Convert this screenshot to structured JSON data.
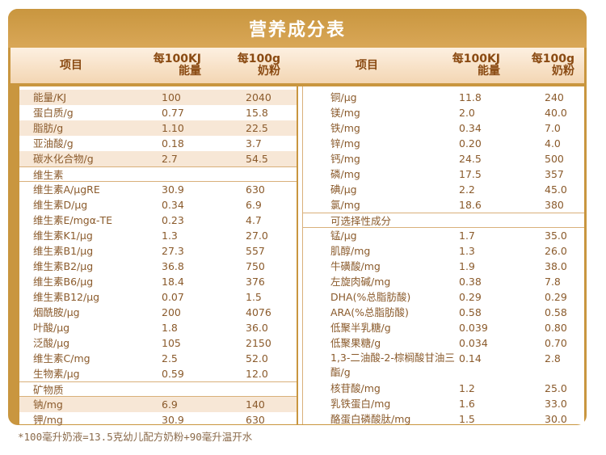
{
  "title": "营养成分表",
  "header": {
    "item": "项目",
    "per_kj_1": "每100KJ",
    "per_kj_2": "能量",
    "per_g_1": "每100g",
    "per_g_2": "奶粉"
  },
  "left_rows": [
    {
      "name": "能量/KJ",
      "v1": "100",
      "v2": "2040",
      "shaded": true
    },
    {
      "name": "蛋白质/g",
      "v1": "0.77",
      "v2": "15.8",
      "shaded": false
    },
    {
      "name": "脂肪/g",
      "v1": "1.10",
      "v2": "22.5",
      "shaded": true
    },
    {
      "name": "亚油酸/g",
      "v1": "0.18",
      "v2": "3.7",
      "shaded": false
    },
    {
      "name": "碳水化合物/g",
      "v1": "2.7",
      "v2": "54.5",
      "shaded": true
    },
    {
      "name": "维生素",
      "v1": "",
      "v2": "",
      "section": true
    },
    {
      "name": "维生素A/μgRE",
      "v1": "30.9",
      "v2": "630"
    },
    {
      "name": "维生素D/μg",
      "v1": "0.34",
      "v2": "6.9"
    },
    {
      "name": "维生素E/mgα-TE",
      "v1": "0.23",
      "v2": "4.7"
    },
    {
      "name": "维生素K1/μg",
      "v1": "1.3",
      "v2": "27.0"
    },
    {
      "name": "维生素B1/μg",
      "v1": "27.3",
      "v2": "557"
    },
    {
      "name": "维生素B2/μg",
      "v1": "36.8",
      "v2": "750"
    },
    {
      "name": "维生素B6/μg",
      "v1": "18.4",
      "v2": "376"
    },
    {
      "name": "维生素B12/μg",
      "v1": "0.07",
      "v2": "1.5"
    },
    {
      "name": "烟酰胺/μg",
      "v1": "200",
      "v2": "4076"
    },
    {
      "name": "叶酸/μg",
      "v1": "1.8",
      "v2": "36.0"
    },
    {
      "name": "泛酸/μg",
      "v1": "105",
      "v2": "2150"
    },
    {
      "name": "维生素C/mg",
      "v1": "2.5",
      "v2": "52.0"
    },
    {
      "name": "生物素/μg",
      "v1": "0.59",
      "v2": "12.0"
    },
    {
      "name": "矿物质",
      "v1": "",
      "v2": "",
      "section": true
    },
    {
      "name": "钠/mg",
      "v1": "6.9",
      "v2": "140",
      "shaded": true
    },
    {
      "name": "钾/mg",
      "v1": "30.9",
      "v2": "630"
    }
  ],
  "right_rows": [
    {
      "name": "铜/μg",
      "v1": "11.8",
      "v2": "240"
    },
    {
      "name": "镁/mg",
      "v1": "2.0",
      "v2": "40.0"
    },
    {
      "name": "铁/mg",
      "v1": "0.34",
      "v2": "7.0"
    },
    {
      "name": "锌/mg",
      "v1": "0.20",
      "v2": "4.0"
    },
    {
      "name": "钙/mg",
      "v1": "24.5",
      "v2": "500"
    },
    {
      "name": "磷/mg",
      "v1": "17.5",
      "v2": "357"
    },
    {
      "name": "碘/μg",
      "v1": "2.2",
      "v2": "45.0"
    },
    {
      "name": "氯/mg",
      "v1": "18.6",
      "v2": "380"
    },
    {
      "name": "可选择性成分",
      "v1": "",
      "v2": "",
      "section": true
    },
    {
      "name": "锰/μg",
      "v1": "1.7",
      "v2": "35.0"
    },
    {
      "name": "肌醇/mg",
      "v1": "1.3",
      "v2": "26.0"
    },
    {
      "name": "牛磺酸/mg",
      "v1": "1.9",
      "v2": "38.0"
    },
    {
      "name": "左旋肉碱/mg",
      "v1": "0.38",
      "v2": "7.8"
    },
    {
      "name": "DHA(%总脂肪酸)",
      "v1": "0.29",
      "v2": "0.29"
    },
    {
      "name": "ARA(%总脂肪酸)",
      "v1": "0.58",
      "v2": "0.58"
    },
    {
      "name": "低聚半乳糖/g",
      "v1": "0.039",
      "v2": "0.80"
    },
    {
      "name": "低聚果糖/g",
      "v1": "0.034",
      "v2": "0.70"
    },
    {
      "name": "1,3-二油酸-2-棕榈酸甘油三酯/g",
      "v1": "0.14",
      "v2": "2.8",
      "tall": true
    },
    {
      "name": "核苷酸/mg",
      "v1": "1.2",
      "v2": "25.0"
    },
    {
      "name": "乳铁蛋白/mg",
      "v1": "1.6",
      "v2": "33.0"
    },
    {
      "name": "酪蛋白磷酸肽/mg",
      "v1": "1.5",
      "v2": "30.0"
    }
  ],
  "footnote": "*100毫升奶液=13.5克幼儿配方奶粉+90毫升温开水"
}
